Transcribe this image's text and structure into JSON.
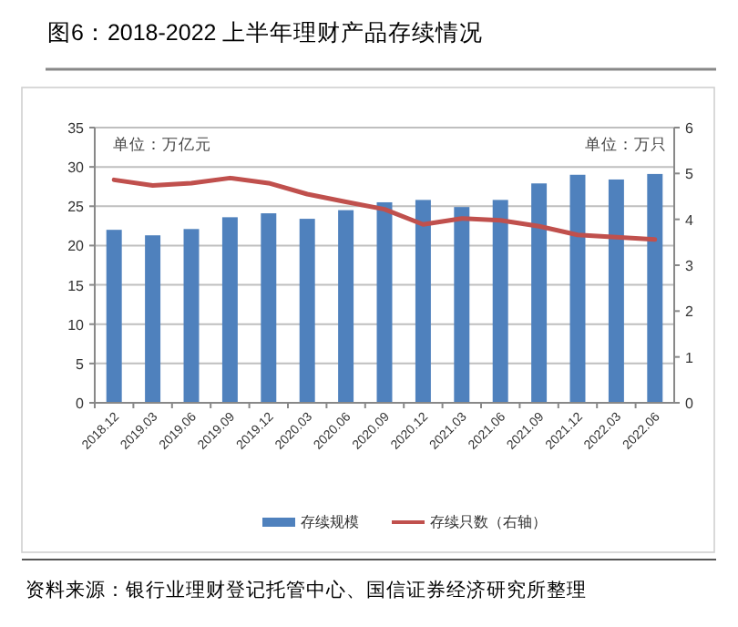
{
  "chart_data": {
    "type": "bar",
    "title": "图6：2018-2022 上半年理财产品存续情况",
    "categories": [
      "2018.12",
      "2019.03",
      "2019.06",
      "2019.09",
      "2019.12",
      "2020.03",
      "2020.06",
      "2020.09",
      "2020.12",
      "2021.03",
      "2021.06",
      "2021.09",
      "2021.12",
      "2022.03",
      "2022.06"
    ],
    "series": [
      {
        "name": "存续规模",
        "color": "#4f81bd",
        "values": [
          22.0,
          21.3,
          22.1,
          23.6,
          24.1,
          23.4,
          24.5,
          25.5,
          25.8,
          24.9,
          25.8,
          27.9,
          29.0,
          28.4,
          29.1
        ]
      },
      {
        "name": "存续只数（右轴）",
        "type": "line",
        "axis": "y2",
        "color": "#c0504d",
        "values": [
          4.86,
          4.74,
          4.79,
          4.9,
          4.79,
          4.55,
          4.38,
          4.22,
          3.89,
          4.02,
          3.98,
          3.85,
          3.66,
          3.61,
          3.56
        ]
      }
    ],
    "ylim": [
      0,
      35
    ],
    "yticks": [
      0,
      5,
      10,
      15,
      20,
      25,
      30,
      35
    ],
    "y2lim": [
      0,
      6
    ],
    "y2ticks": [
      0,
      1,
      2,
      3,
      4,
      5,
      6
    ],
    "grid": "y",
    "legend": "bottom",
    "annotations": [
      "单位：万亿元",
      "单位：万只",
      "资料来源：银行业理财登记托管中心、国信证券经济研究所整理"
    ]
  }
}
